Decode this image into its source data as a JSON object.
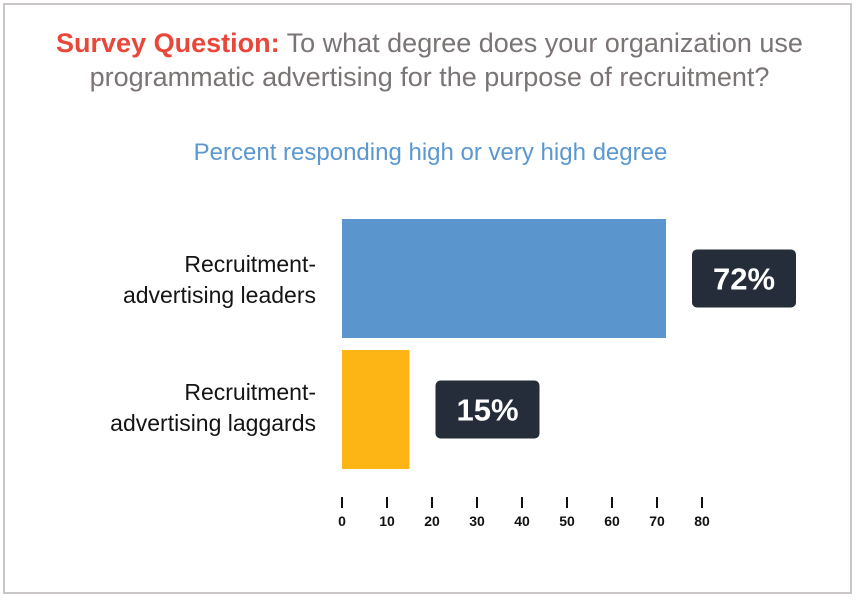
{
  "question": {
    "lead": "Survey Question:",
    "line1": "To what degree does your organization use",
    "line2": "programmatic advertising for the purpose of recruitment?"
  },
  "chart_data": {
    "type": "bar",
    "orientation": "horizontal",
    "title": "Survey Question: To what degree does your organization use programmatic advertising for the purpose of recruitment?",
    "subtitle": "Percent responding high or very high degree",
    "categories": [
      [
        "Recruitment-",
        "advertising leaders"
      ],
      [
        "Recruitment-",
        "advertising laggards"
      ]
    ],
    "values": [
      72,
      15
    ],
    "value_labels": [
      "72%",
      "15%"
    ],
    "colors": [
      "#5b95cd",
      "#fdb515"
    ],
    "label_box_color": "#252d3a",
    "xlim": [
      0,
      80
    ],
    "xticks": [
      0,
      10,
      20,
      30,
      40,
      50,
      60,
      70,
      80
    ],
    "grid": false,
    "legend": "none"
  }
}
